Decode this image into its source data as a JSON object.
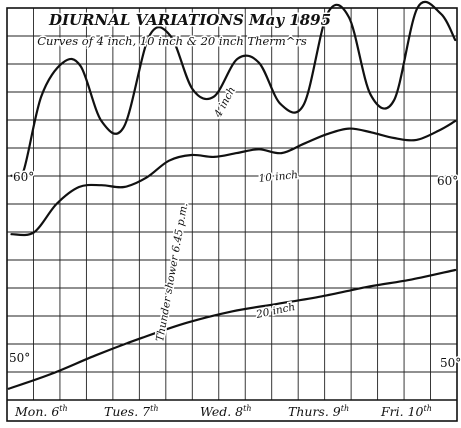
{
  "title": "DIURNAL VARIATIONS May 1895",
  "subtitle": "Curves of 4 inch, 10 inch & 20 inch Therm^rs",
  "chart_data": {
    "type": "line",
    "title": "DIURNAL VARIATIONS May 1895",
    "subtitle": "Curves of 4 inch, 10 inch & 20 inch Therm^rs",
    "y_tick_labels": [
      "60°",
      "50°"
    ],
    "ylim": [
      46.7,
      67.5
    ],
    "xlim": [
      0,
      5
    ],
    "grid": true,
    "day_labels": [
      {
        "text": "Mon. 6",
        "sup": "th"
      },
      {
        "text": "Tues. 7",
        "sup": "th"
      },
      {
        "text": "Wed. 8",
        "sup": "th"
      },
      {
        "text": "Thurs. 9",
        "sup": "th"
      },
      {
        "text": "Fri. 10",
        "sup": "th"
      }
    ],
    "annotation": "Thunder shower 6.45 p.m.",
    "series": [
      {
        "name": "4 inch",
        "x": [
          0.05,
          0.18,
          0.38,
          0.62,
          0.82,
          1.05,
          1.3,
          1.58,
          1.82,
          2.06,
          2.3,
          2.56,
          2.8,
          3.04,
          3.3,
          3.56,
          3.8,
          4.04,
          4.3,
          4.56,
          4.82,
          4.98
        ],
        "y": [
          58.6,
          58.8,
          62.8,
          64.6,
          64.4,
          61.5,
          61.2,
          66.0,
          66.0,
          63.2,
          62.8,
          64.8,
          64.6,
          62.4,
          62.4,
          67.2,
          67.0,
          62.9,
          62.6,
          67.5,
          67.2,
          65.8
        ]
      },
      {
        "name": "10 inch",
        "x": [
          0.05,
          0.3,
          0.55,
          0.8,
          1.05,
          1.3,
          1.55,
          1.8,
          2.05,
          2.3,
          2.55,
          2.8,
          3.05,
          3.3,
          3.55,
          3.8,
          4.05,
          4.3,
          4.55,
          4.8,
          4.98
        ],
        "y": [
          55.5,
          55.6,
          57.1,
          58.0,
          58.1,
          58.0,
          58.5,
          59.4,
          59.7,
          59.6,
          59.8,
          60.0,
          59.8,
          60.3,
          60.8,
          61.1,
          60.9,
          60.6,
          60.5,
          61.0,
          61.5
        ]
      },
      {
        "name": "20 inch",
        "x": [
          0.02,
          0.5,
          1.0,
          1.5,
          2.0,
          2.5,
          3.0,
          3.5,
          4.0,
          4.5,
          4.98
        ],
        "y": [
          47.3,
          48.1,
          49.1,
          50.0,
          50.8,
          51.4,
          51.8,
          52.2,
          52.7,
          53.1,
          53.6
        ]
      }
    ]
  }
}
